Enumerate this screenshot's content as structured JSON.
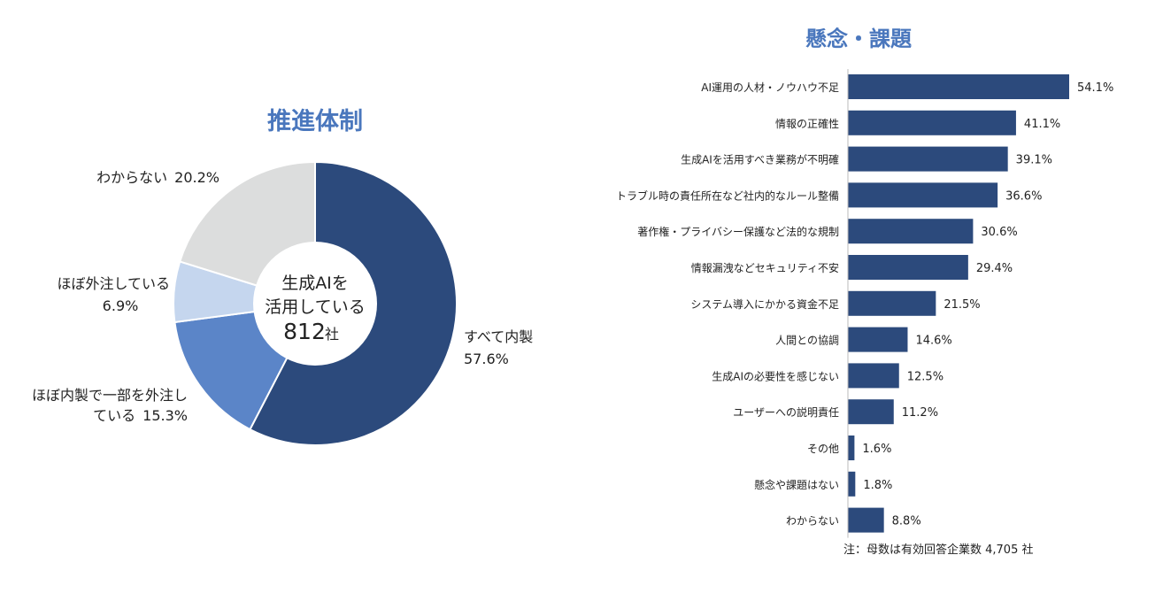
{
  "chart_data": [
    {
      "type": "pie",
      "variant": "donut",
      "title": "推進体制",
      "center_label": {
        "line1": "生成AIを",
        "line2": "活用している",
        "count": "812",
        "unit": "社"
      },
      "slices": [
        {
          "label_lines": [
            "すべて内製"
          ],
          "value_text": "57.6%",
          "value": 57.6,
          "color": "#2c4a7c"
        },
        {
          "label_lines": [
            "ほぼ内製で一部を外注し",
            "ている"
          ],
          "value_text": "15.3%",
          "value": 15.3,
          "color": "#5b85c8"
        },
        {
          "label_lines": [
            "ほぼ外注している"
          ],
          "value_text": "6.9%",
          "value": 6.9,
          "color": "#c5d6ee"
        },
        {
          "label_lines": [
            "わからない"
          ],
          "value_text": "20.2%",
          "value": 20.2,
          "color": "#dcdddd"
        }
      ]
    },
    {
      "type": "bar",
      "orientation": "horizontal",
      "title": "懸念・課題",
      "bar_color": "#2c4a7c",
      "categories": [
        "AI運用の人材・ノウハウ不足",
        "情報の正確性",
        "生成AIを活用すべき業務が不明確",
        "トラブル時の責任所在など社内的なルール整備",
        "著作権・プライバシー保護など法的な規制",
        "情報漏洩などセキュリティ不安",
        "システム導入にかかる資金不足",
        "人間との協調",
        "生成AIの必要性を感じない",
        "ユーザーへの説明責任",
        "その他",
        "懸念や課題はない",
        "わからない"
      ],
      "values": [
        54.1,
        41.1,
        39.1,
        36.6,
        30.6,
        29.4,
        21.5,
        14.6,
        12.5,
        11.2,
        1.6,
        1.8,
        8.8
      ],
      "value_labels": [
        "54.1%",
        "41.1%",
        "39.1%",
        "36.6%",
        "30.6%",
        "29.4%",
        "21.5%",
        "14.6%",
        "12.5%",
        "11.2%",
        "1.6%",
        "1.8%",
        "8.8%"
      ],
      "xlim": [
        0,
        54.1
      ],
      "note": "注：母数は有効回答企業数 4,705 社"
    }
  ]
}
